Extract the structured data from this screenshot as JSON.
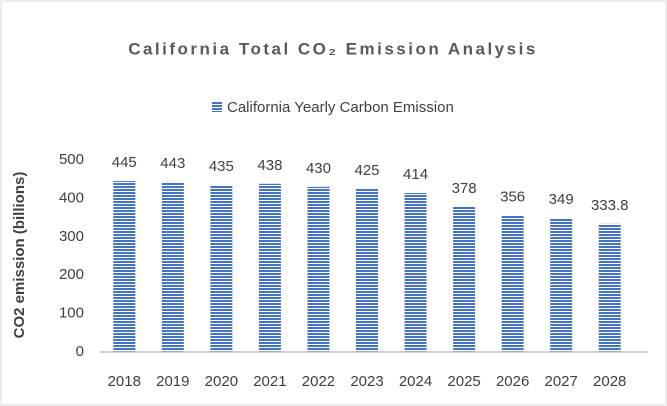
{
  "chart_data": {
    "type": "bar",
    "title": "California Total CO₂ Emission Analysis",
    "legend": "California Yearly Carbon Emission",
    "ylabel": "CO2 emission (billions)",
    "categories": [
      "2018",
      "2019",
      "2020",
      "2021",
      "2022",
      "2023",
      "2024",
      "2025",
      "2026",
      "2027",
      "2028"
    ],
    "values": [
      445,
      443,
      435,
      438,
      430,
      425,
      414,
      378,
      356,
      349,
      333.8
    ],
    "color": "#4472c4",
    "ylim": [
      0,
      500
    ],
    "yticks": [
      0,
      100,
      200,
      300,
      400,
      500
    ],
    "grid": false
  }
}
